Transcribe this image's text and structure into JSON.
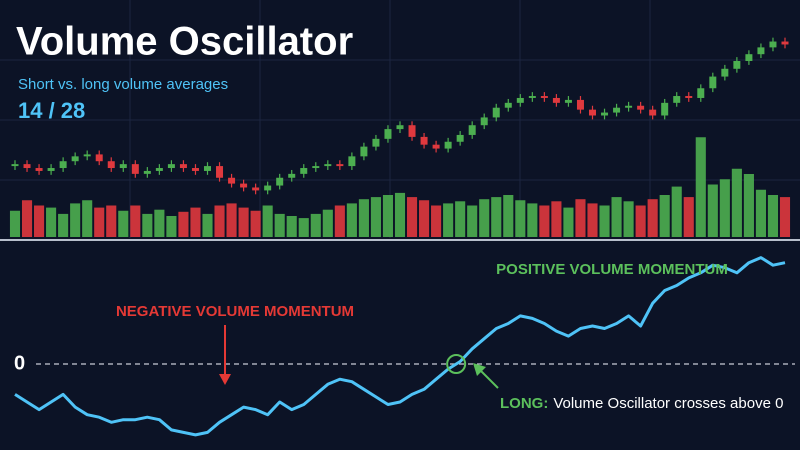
{
  "chart_data": [
    {
      "type": "candlestick",
      "title": "Volume Oscillator",
      "subtitle": "Short vs. long volume averages",
      "period": "14 / 28",
      "open": [
        80,
        82,
        78,
        75,
        78,
        85,
        90,
        92,
        85,
        78,
        82,
        72,
        75,
        78,
        82,
        78,
        75,
        80,
        68,
        62,
        58,
        55,
        60,
        68,
        72,
        78,
        80,
        82,
        80,
        90,
        100,
        108,
        118,
        122,
        110,
        102,
        98,
        105,
        112,
        122,
        130,
        140,
        145,
        150,
        152,
        150,
        145,
        148,
        138,
        132,
        135,
        140,
        142,
        138,
        132,
        145,
        152,
        150,
        160,
        172,
        180,
        188,
        195,
        202,
        208
      ],
      "close": [
        82,
        78,
        75,
        78,
        85,
        90,
        92,
        85,
        78,
        82,
        72,
        75,
        78,
        82,
        78,
        75,
        80,
        68,
        62,
        58,
        55,
        60,
        68,
        72,
        78,
        80,
        82,
        80,
        90,
        100,
        108,
        118,
        122,
        110,
        102,
        98,
        105,
        112,
        122,
        130,
        140,
        145,
        150,
        152,
        150,
        145,
        148,
        138,
        132,
        135,
        140,
        142,
        138,
        132,
        145,
        152,
        150,
        160,
        172,
        180,
        188,
        195,
        202,
        208,
        205
      ],
      "high": [
        86,
        86,
        82,
        82,
        89,
        94,
        96,
        96,
        89,
        86,
        86,
        79,
        82,
        86,
        86,
        82,
        84,
        84,
        72,
        66,
        62,
        64,
        72,
        76,
        82,
        84,
        86,
        86,
        94,
        104,
        112,
        122,
        126,
        126,
        114,
        106,
        109,
        116,
        126,
        134,
        144,
        149,
        154,
        156,
        156,
        154,
        152,
        152,
        142,
        139,
        144,
        146,
        146,
        142,
        149,
        156,
        156,
        164,
        176,
        184,
        192,
        199,
        206,
        212,
        212
      ],
      "low": [
        76,
        74,
        71,
        71,
        74,
        81,
        86,
        81,
        74,
        74,
        68,
        68,
        71,
        74,
        74,
        71,
        71,
        64,
        58,
        54,
        51,
        51,
        56,
        64,
        68,
        74,
        76,
        76,
        76,
        86,
        96,
        104,
        114,
        106,
        98,
        94,
        94,
        101,
        108,
        118,
        126,
        136,
        141,
        146,
        146,
        141,
        141,
        134,
        128,
        128,
        131,
        136,
        134,
        128,
        128,
        141,
        146,
        146,
        156,
        168,
        176,
        184,
        191,
        198,
        201
      ],
      "ylim": [
        40,
        225
      ],
      "volume": [
        25,
        35,
        30,
        28,
        22,
        32,
        35,
        28,
        30,
        25,
        30,
        22,
        26,
        20,
        24,
        28,
        22,
        30,
        32,
        28,
        25,
        30,
        22,
        20,
        18,
        22,
        26,
        30,
        32,
        36,
        38,
        40,
        42,
        38,
        35,
        30,
        32,
        34,
        30,
        36,
        38,
        40,
        35,
        32,
        30,
        34,
        28,
        36,
        32,
        30,
        38,
        34,
        30,
        36,
        40,
        48,
        38,
        95,
        50,
        55,
        65,
        60,
        45,
        40,
        38
      ],
      "volume_ylim": [
        0,
        100
      ],
      "up_color": "#4caf50",
      "down_color": "#e0393e"
    },
    {
      "type": "line",
      "values": [
        -12,
        -15,
        -18,
        -15,
        -12,
        -17,
        -20,
        -21,
        -23,
        -22,
        -22,
        -21,
        -22,
        -26,
        -27,
        -28,
        -27,
        -23,
        -20,
        -17,
        -18,
        -20,
        -15,
        -18,
        -16,
        -12,
        -8,
        -6,
        -7,
        -10,
        -13,
        -16,
        -15,
        -12,
        -10,
        -6,
        -2,
        1,
        6,
        10,
        14,
        16,
        19,
        18,
        16,
        13,
        11,
        14,
        15,
        14,
        16,
        19,
        15,
        24,
        29,
        31,
        34,
        36,
        39,
        38,
        36,
        40,
        42,
        39,
        40
      ],
      "color": "#4fc3f7",
      "ylim": [
        -30,
        45
      ],
      "yticks": [
        0
      ],
      "annotations": {
        "negative": "NEGATIVE VOLUME MOMENTUM",
        "positive": "POSITIVE VOLUME MOMENTUM",
        "signal_label": "LONG:",
        "signal_text": "Volume Oscillator crosses above 0"
      }
    }
  ]
}
